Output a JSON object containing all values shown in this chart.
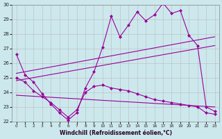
{
  "xlabel": "Windchill (Refroidissement éolien,°C)",
  "color": "#990099",
  "bg_color": "#cce8ed",
  "grid_color": "#bbbbbb",
  "ylim": [
    22,
    30
  ],
  "xlim_min": -0.5,
  "xlim_max": 23.5,
  "line_top": {
    "x": [
      0,
      1,
      2,
      3,
      4,
      5,
      6,
      7,
      8,
      9,
      10,
      11,
      12,
      13,
      14,
      15,
      16,
      17,
      18,
      19,
      20,
      21,
      22,
      23
    ],
    "y": [
      26.6,
      25.2,
      24.7,
      23.9,
      23.2,
      22.6,
      22.1,
      22.6,
      24.3,
      25.4,
      27.1,
      29.2,
      27.8,
      28.6,
      29.5,
      28.9,
      29.3,
      30.1,
      29.4,
      29.6,
      27.9,
      27.2,
      23.0,
      22.7
    ]
  },
  "line_bottom": {
    "x": [
      0,
      1,
      2,
      3,
      4,
      5,
      6,
      7,
      8,
      9,
      10,
      11,
      12,
      13,
      14,
      15,
      16,
      17,
      18,
      19,
      20,
      21,
      22,
      23
    ],
    "y": [
      25.0,
      24.7,
      24.1,
      23.7,
      23.3,
      22.8,
      22.3,
      22.8,
      24.0,
      24.4,
      24.5,
      24.3,
      24.2,
      24.1,
      23.9,
      23.7,
      23.5,
      23.4,
      23.3,
      23.2,
      23.1,
      23.0,
      22.6,
      22.5
    ]
  },
  "diag_upper": {
    "x": [
      0,
      23
    ],
    "y": [
      25.3,
      27.8
    ]
  },
  "diag_lower": {
    "x": [
      0,
      23
    ],
    "y": [
      24.8,
      27.2
    ]
  },
  "diag_bottom": {
    "x": [
      0,
      23
    ],
    "y": [
      23.8,
      23.0
    ]
  }
}
